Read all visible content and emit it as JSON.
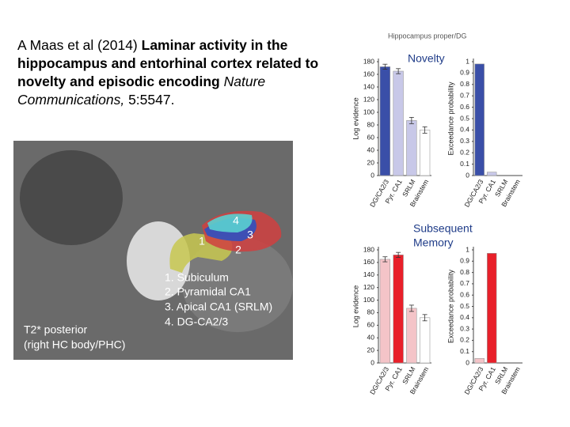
{
  "citation": {
    "authors": "A Maas et al (2014)",
    "title": "Laminar activity in the hippocampus and entorhinal cortex related to novelty and episodic encoding",
    "journal": "Nature Communications,",
    "volume": "5:5547."
  },
  "image_labels": {
    "regions": [
      "4",
      "3",
      "1",
      "2"
    ],
    "legend": [
      "1. Subiculum",
      "2. Pyramidal CA1",
      "3. Apical CA1 (SRLM)",
      "4. DG-CA2/3"
    ],
    "caption": [
      "T2* posterior",
      "(right HC body/PHC)"
    ]
  },
  "panel_title": "Hippocampus proper/DG",
  "chart_data": [
    {
      "type": "bar",
      "y_label": "Log evidence",
      "categories": [
        "DG/CA2/3",
        "Pyr. CA1",
        "SRLM",
        "Brainstem"
      ],
      "values": [
        172,
        165,
        87,
        72
      ],
      "errors": [
        4,
        4,
        5,
        5
      ],
      "colors": [
        "#3a4fa8",
        "#c8c8e8",
        "#c8c8e8",
        "#ffffff"
      ],
      "ylim": [
        0,
        180
      ],
      "yticks": [
        0,
        20,
        40,
        60,
        80,
        100,
        120,
        140,
        160,
        180
      ]
    },
    {
      "type": "bar",
      "y_label": "Exceedance probability",
      "annotation": [
        "Novelty"
      ],
      "categories": [
        "DG/CA2/3",
        "Pyr. CA1",
        "SRLM",
        "Brainstem"
      ],
      "values": [
        0.98,
        0.03,
        0,
        0
      ],
      "colors": [
        "#3a4fa8",
        "#c8c8e8",
        "#c8c8e8",
        "#ffffff"
      ],
      "ylim": [
        0,
        1
      ],
      "yticks": [
        0,
        0.1,
        0.2,
        0.3,
        0.4,
        0.5,
        0.6,
        0.7,
        0.8,
        0.9,
        1
      ]
    },
    {
      "type": "bar",
      "y_label": "Log evidence",
      "categories": [
        "DG/CA2/3",
        "Pyr. CA1",
        "SRLM",
        "Brainstem"
      ],
      "values": [
        165,
        172,
        87,
        72
      ],
      "errors": [
        4,
        4,
        5,
        5
      ],
      "colors": [
        "#f4c4c8",
        "#e8202a",
        "#f4c4c8",
        "#ffffff"
      ],
      "ylim": [
        0,
        180
      ],
      "yticks": [
        0,
        20,
        40,
        60,
        80,
        100,
        120,
        140,
        160,
        180
      ]
    },
    {
      "type": "bar",
      "y_label": "Exceedance probability",
      "annotation": [
        "Subsequent",
        "Memory"
      ],
      "categories": [
        "DG/CA2/3",
        "Pyr. CA1",
        "SRLM",
        "Brainstem"
      ],
      "values": [
        0.04,
        0.97,
        0,
        0
      ],
      "colors": [
        "#f4c4c8",
        "#e8202a",
        "#f4c4c8",
        "#ffffff"
      ],
      "ylim": [
        0,
        1
      ],
      "yticks": [
        0,
        0.1,
        0.2,
        0.3,
        0.4,
        0.5,
        0.6,
        0.7,
        0.8,
        0.9,
        1
      ]
    }
  ]
}
